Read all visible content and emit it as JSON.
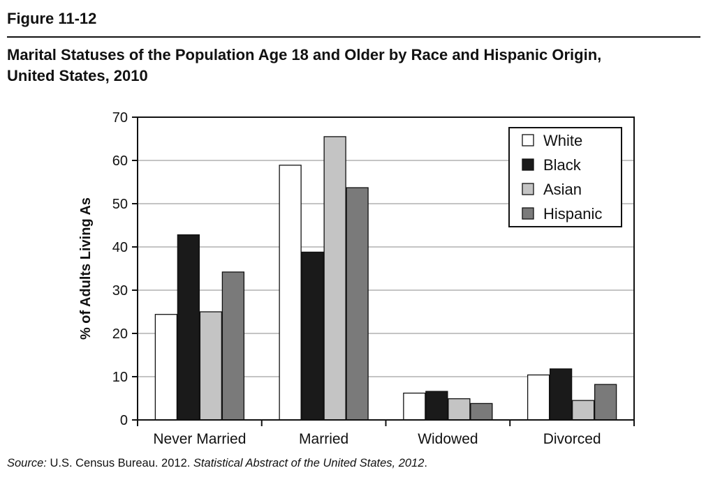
{
  "figure_label": "Figure 11-12",
  "title_line1": "Marital Statuses of the Population Age 18 and Older by Race and Hispanic Origin,",
  "title_line2": "United States, 2010",
  "source": {
    "prefix": "Source:",
    "text": " U.S. Census Bureau. 2012. ",
    "italic": "Statistical Abstract of the United States, 2012",
    "suffix": "."
  },
  "chart_data": {
    "type": "bar",
    "title": "",
    "xlabel": "",
    "ylabel": "% of Adults Living As",
    "ylim": [
      0,
      70
    ],
    "yticks": [
      0,
      10,
      20,
      30,
      40,
      50,
      60,
      70
    ],
    "grid": true,
    "legend_position": "top-right",
    "categories": [
      "Never Married",
      "Married",
      "Widowed",
      "Divorced"
    ],
    "series": [
      {
        "name": "White",
        "color": "#ffffff",
        "values": [
          24.4,
          58.9,
          6.2,
          10.4
        ]
      },
      {
        "name": "Black",
        "color": "#1a1a1a",
        "values": [
          42.8,
          38.8,
          6.6,
          11.8
        ]
      },
      {
        "name": "Asian",
        "color": "#c4c4c4",
        "values": [
          25.0,
          65.5,
          4.9,
          4.5
        ]
      },
      {
        "name": "Hispanic",
        "color": "#7a7a7a",
        "values": [
          34.2,
          53.7,
          3.8,
          8.2
        ]
      }
    ]
  }
}
